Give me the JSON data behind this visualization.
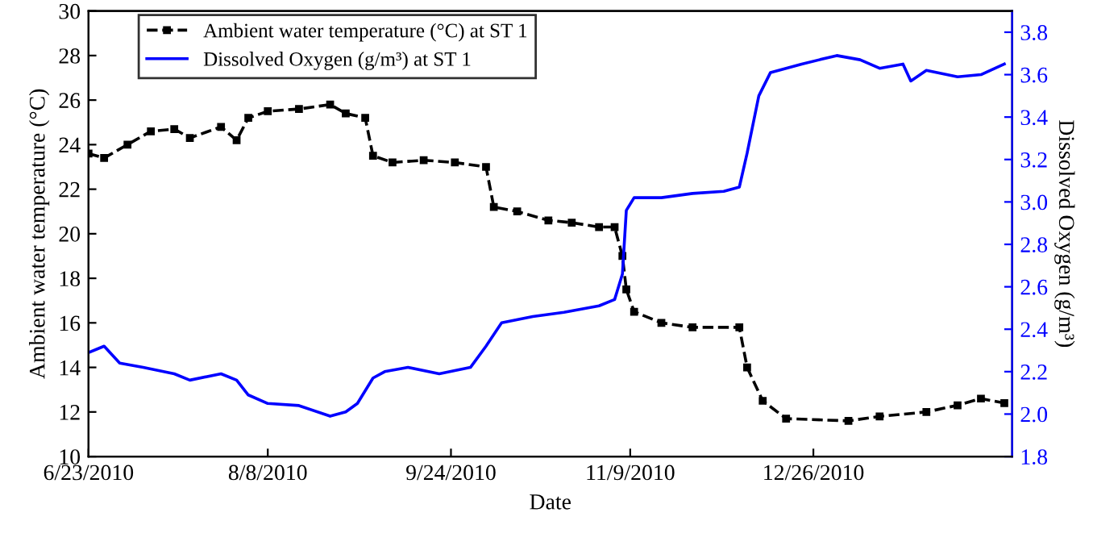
{
  "chart_data": {
    "type": "line",
    "xlabel": "Date",
    "ylabel": "Ambient water temperature (°C)",
    "y2label": "Dissolved Oxygen (g/m³)",
    "xlim": [
      "2010-06-23",
      "2011-02-15"
    ],
    "xticks": [
      {
        "value": "2010-06-23",
        "label": "6/23/2010"
      },
      {
        "value": "2010-08-08",
        "label": "8/8/2010"
      },
      {
        "value": "2010-09-24",
        "label": "9/24/2010"
      },
      {
        "value": "2010-11-09",
        "label": "11/9/2010"
      },
      {
        "value": "2010-12-26",
        "label": "12/26/2010"
      }
    ],
    "ylim": [
      10,
      30
    ],
    "yticks": [
      10,
      12,
      14,
      16,
      18,
      20,
      22,
      24,
      26,
      28,
      30
    ],
    "y2lim": [
      1.8,
      3.9
    ],
    "y2ticks": [
      {
        "value": 1.8,
        "label": "1.8"
      },
      {
        "value": 2.0,
        "label": "2.0"
      },
      {
        "value": 2.2,
        "label": "2.2"
      },
      {
        "value": 2.4,
        "label": "2.4"
      },
      {
        "value": 2.6,
        "label": "2.6"
      },
      {
        "value": 2.8,
        "label": "2.8"
      },
      {
        "value": 3.0,
        "label": "3.0"
      },
      {
        "value": 3.2,
        "label": "3.2"
      },
      {
        "value": 3.4,
        "label": "3.4"
      },
      {
        "value": 3.6,
        "label": "3.6"
      },
      {
        "value": 3.8,
        "label": "3.8"
      }
    ],
    "legend": "top left",
    "grid": false,
    "series": [
      {
        "name": "Ambient water temperature (°C) at ST 1",
        "color": "#000000",
        "marker": "square",
        "line_style": "dashed",
        "x": [
          "2010-06-23",
          "2010-06-27",
          "2010-07-03",
          "2010-07-09",
          "2010-07-15",
          "2010-07-19",
          "2010-07-27",
          "2010-07-31",
          "2010-08-03",
          "2010-08-08",
          "2010-08-16",
          "2010-08-24",
          "2010-08-28",
          "2010-09-02",
          "2010-09-04",
          "2010-09-09",
          "2010-09-17",
          "2010-09-25",
          "2010-10-03",
          "2010-10-05",
          "2010-10-11",
          "2010-10-19",
          "2010-10-25",
          "2010-11-01",
          "2010-11-05",
          "2010-11-07",
          "2010-11-08",
          "2010-11-10",
          "2010-11-17",
          "2010-11-25",
          "2010-12-07",
          "2010-12-09",
          "2010-12-13",
          "2010-12-19",
          "2011-01-04",
          "2011-01-12",
          "2011-01-24",
          "2011-02-01",
          "2011-02-07",
          "2011-02-13"
        ],
        "values": [
          23.6,
          23.4,
          24.0,
          24.6,
          24.7,
          24.3,
          24.8,
          24.2,
          25.2,
          25.5,
          25.6,
          25.8,
          25.4,
          25.2,
          23.5,
          23.2,
          23.3,
          23.2,
          23.0,
          21.2,
          21.0,
          20.6,
          20.5,
          20.3,
          20.3,
          19.0,
          17.5,
          16.5,
          16.0,
          15.8,
          15.8,
          14.0,
          12.5,
          11.7,
          11.6,
          11.8,
          12.0,
          12.3,
          12.6,
          12.4
        ]
      },
      {
        "name": "Dissolved Oxygen (g/m³) at ST 1",
        "color": "#0000ff",
        "axis": "y2",
        "marker": "none",
        "line_style": "solid",
        "x": [
          "2010-06-23",
          "2010-06-27",
          "2010-07-01",
          "2010-07-07",
          "2010-07-15",
          "2010-07-19",
          "2010-07-27",
          "2010-07-31",
          "2010-08-03",
          "2010-08-08",
          "2010-08-16",
          "2010-08-24",
          "2010-08-28",
          "2010-08-31",
          "2010-09-04",
          "2010-09-07",
          "2010-09-13",
          "2010-09-21",
          "2010-09-29",
          "2010-10-03",
          "2010-10-07",
          "2010-10-15",
          "2010-10-23",
          "2010-11-01",
          "2010-11-05",
          "2010-11-07",
          "2010-11-08",
          "2010-11-10",
          "2010-11-17",
          "2010-11-25",
          "2010-12-03",
          "2010-12-07",
          "2010-12-09",
          "2010-12-12",
          "2010-12-15",
          "2010-12-23",
          "2011-01-01",
          "2011-01-07",
          "2011-01-12",
          "2011-01-18",
          "2011-01-20",
          "2011-01-24",
          "2011-02-01",
          "2011-02-07",
          "2011-02-13"
        ],
        "values": [
          2.29,
          2.32,
          2.24,
          2.22,
          2.19,
          2.16,
          2.19,
          2.16,
          2.09,
          2.05,
          2.04,
          1.99,
          2.01,
          2.05,
          2.17,
          2.2,
          2.22,
          2.19,
          2.22,
          2.32,
          2.43,
          2.46,
          2.48,
          2.51,
          2.54,
          2.66,
          2.96,
          3.02,
          3.02,
          3.04,
          3.05,
          3.07,
          3.23,
          3.5,
          3.61,
          3.65,
          3.69,
          3.67,
          3.63,
          3.65,
          3.57,
          3.62,
          3.59,
          3.6,
          3.65
        ]
      }
    ]
  }
}
